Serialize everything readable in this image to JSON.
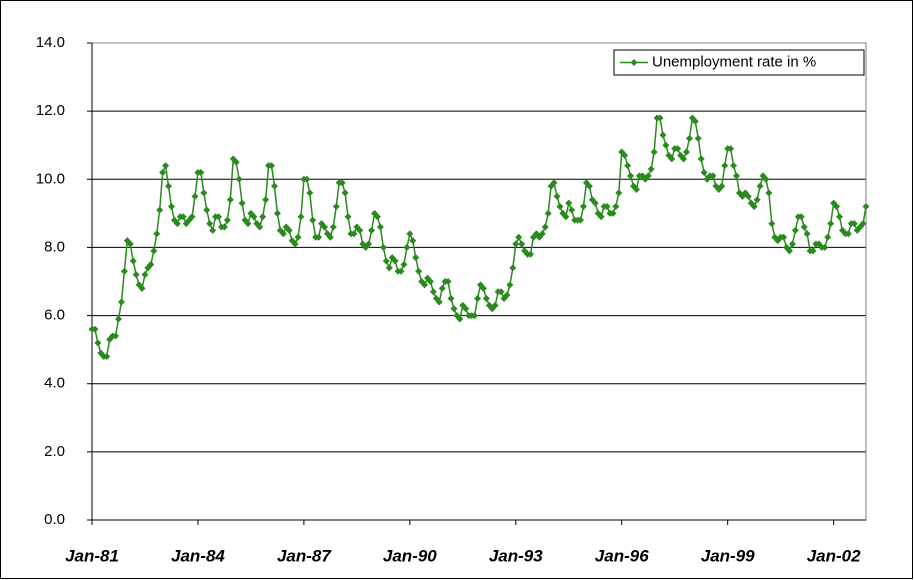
{
  "chart_data": {
    "type": "line",
    "categories": [
      "Jan-81",
      null,
      null,
      null,
      null,
      null,
      null,
      null,
      null,
      null,
      null,
      null,
      null,
      null,
      null,
      null,
      null,
      null,
      null,
      null,
      null,
      null,
      null,
      null,
      null,
      null,
      null,
      null,
      null,
      null,
      null,
      null,
      null,
      null,
      null,
      null,
      "Jan-84",
      null,
      null,
      null,
      null,
      null,
      null,
      null,
      null,
      null,
      null,
      null,
      null,
      null,
      null,
      null,
      null,
      null,
      null,
      null,
      null,
      null,
      null,
      null,
      null,
      null,
      null,
      null,
      null,
      null,
      null,
      null,
      null,
      null,
      null,
      null,
      "Jan-87",
      null,
      null,
      null,
      null,
      null,
      null,
      null,
      null,
      null,
      null,
      null,
      null,
      null,
      null,
      null,
      null,
      null,
      null,
      null,
      null,
      null,
      null,
      null,
      null,
      null,
      null,
      null,
      null,
      null,
      null,
      null,
      null,
      null,
      null,
      null,
      "Jan-90",
      null,
      null,
      null,
      null,
      null,
      null,
      null,
      null,
      null,
      null,
      null,
      null,
      null,
      null,
      null,
      null,
      null,
      null,
      null,
      null,
      null,
      null,
      null,
      null,
      null,
      null,
      null,
      null,
      null,
      null,
      null,
      null,
      null,
      null,
      null,
      "Jan-93",
      null,
      null,
      null,
      null,
      null,
      null,
      null,
      null,
      null,
      null,
      null,
      null,
      null,
      null,
      null,
      null,
      null,
      null,
      null,
      null,
      null,
      null,
      null,
      null,
      null,
      null,
      null,
      null,
      null,
      null,
      null,
      null,
      null,
      null,
      null,
      "Jan-96",
      null,
      null,
      null,
      null,
      null,
      null,
      null,
      null,
      null,
      null,
      null,
      null,
      null,
      null,
      null,
      null,
      null,
      null,
      null,
      null,
      null,
      null,
      null,
      null,
      null,
      null,
      null,
      null,
      null,
      null,
      null,
      null,
      null,
      null,
      null,
      "Jan-99",
      null,
      null,
      null,
      null,
      null,
      null,
      null,
      null,
      null,
      null,
      null,
      null,
      null,
      null,
      null,
      null,
      null,
      null,
      null,
      null,
      null,
      null,
      null,
      null,
      null,
      null,
      null,
      null,
      null,
      null,
      null,
      null,
      null,
      null,
      null,
      "Jan-02",
      null,
      null,
      null,
      null,
      null,
      null,
      null,
      null,
      null,
      null,
      null
    ],
    "series": [
      {
        "name": "Unemployment rate in %",
        "color": "#2a8a1e",
        "values": [
          5.6,
          5.6,
          5.2,
          4.9,
          4.8,
          4.8,
          5.3,
          5.4,
          5.4,
          5.9,
          6.4,
          7.3,
          8.2,
          8.1,
          7.6,
          7.2,
          6.9,
          6.8,
          7.2,
          7.4,
          7.5,
          7.9,
          8.4,
          9.1,
          10.2,
          10.4,
          9.8,
          9.2,
          8.8,
          8.7,
          8.9,
          8.9,
          8.7,
          8.8,
          8.9,
          9.5,
          10.2,
          10.2,
          9.6,
          9.1,
          8.7,
          8.5,
          8.9,
          8.9,
          8.6,
          8.6,
          8.8,
          9.4,
          10.6,
          10.5,
          10.0,
          9.3,
          8.8,
          8.7,
          9.0,
          8.9,
          8.7,
          8.6,
          8.9,
          9.4,
          10.4,
          10.4,
          9.8,
          9.0,
          8.5,
          8.4,
          8.6,
          8.5,
          8.2,
          8.1,
          8.3,
          8.9,
          10.0,
          10.0,
          9.6,
          8.8,
          8.3,
          8.3,
          8.7,
          8.6,
          8.4,
          8.3,
          8.6,
          9.2,
          9.9,
          9.9,
          9.6,
          8.9,
          8.4,
          8.4,
          8.6,
          8.5,
          8.1,
          8.0,
          8.1,
          8.5,
          9.0,
          8.9,
          8.6,
          8.0,
          7.6,
          7.4,
          7.7,
          7.6,
          7.3,
          7.3,
          7.5,
          8.0,
          8.4,
          8.2,
          7.7,
          7.3,
          7.0,
          6.9,
          7.1,
          7.0,
          6.7,
          6.5,
          6.4,
          6.8,
          7.0,
          7.0,
          6.5,
          6.2,
          6.0,
          5.9,
          6.3,
          6.2,
          6.0,
          6.0,
          6.0,
          6.5,
          6.9,
          6.8,
          6.5,
          6.3,
          6.2,
          6.3,
          6.7,
          6.7,
          6.5,
          6.6,
          6.9,
          7.4,
          8.1,
          8.3,
          8.1,
          7.9,
          7.8,
          7.8,
          8.3,
          8.4,
          8.3,
          8.4,
          8.6,
          9.0,
          9.8,
          9.9,
          9.5,
          9.2,
          9.0,
          8.9,
          9.3,
          9.1,
          8.8,
          8.8,
          8.8,
          9.2,
          9.9,
          9.8,
          9.4,
          9.3,
          9.0,
          8.9,
          9.2,
          9.2,
          9.0,
          9.0,
          9.2,
          9.6,
          10.8,
          10.7,
          10.4,
          10.1,
          9.8,
          9.7,
          10.1,
          10.1,
          10.0,
          10.1,
          10.3,
          10.8,
          11.8,
          11.8,
          11.3,
          11.0,
          10.7,
          10.6,
          10.9,
          10.9,
          10.7,
          10.6,
          10.8,
          11.2,
          11.8,
          11.7,
          11.2,
          10.6,
          10.2,
          10.0,
          10.1,
          10.1,
          9.8,
          9.7,
          9.8,
          10.4,
          10.9,
          10.9,
          10.4,
          10.1,
          9.6,
          9.5,
          9.6,
          9.5,
          9.3,
          9.2,
          9.4,
          9.8,
          10.1,
          10.0,
          9.6,
          8.7,
          8.3,
          8.2,
          8.3,
          8.3,
          8.0,
          7.9,
          8.1,
          8.5,
          8.9,
          8.9,
          8.6,
          8.4,
          7.9,
          7.9,
          8.1,
          8.1,
          8.0,
          8.0,
          8.3,
          8.7,
          9.3,
          9.2,
          8.9,
          8.5,
          8.4,
          8.4,
          8.7,
          8.7,
          8.5,
          8.6,
          8.7,
          9.2
        ]
      }
    ],
    "ylim": [
      0,
      14
    ],
    "yticks": [
      {
        "value": 0,
        "label": "0.0"
      },
      {
        "value": 2,
        "label": "2.0"
      },
      {
        "value": 4,
        "label": "4.0"
      },
      {
        "value": 6,
        "label": "6.0"
      },
      {
        "value": 8,
        "label": "8.0"
      },
      {
        "value": 10,
        "label": "10.0"
      },
      {
        "value": 12,
        "label": "12.0"
      },
      {
        "value": 14,
        "label": "14.0"
      }
    ],
    "grid": true,
    "legend": "top-right"
  }
}
